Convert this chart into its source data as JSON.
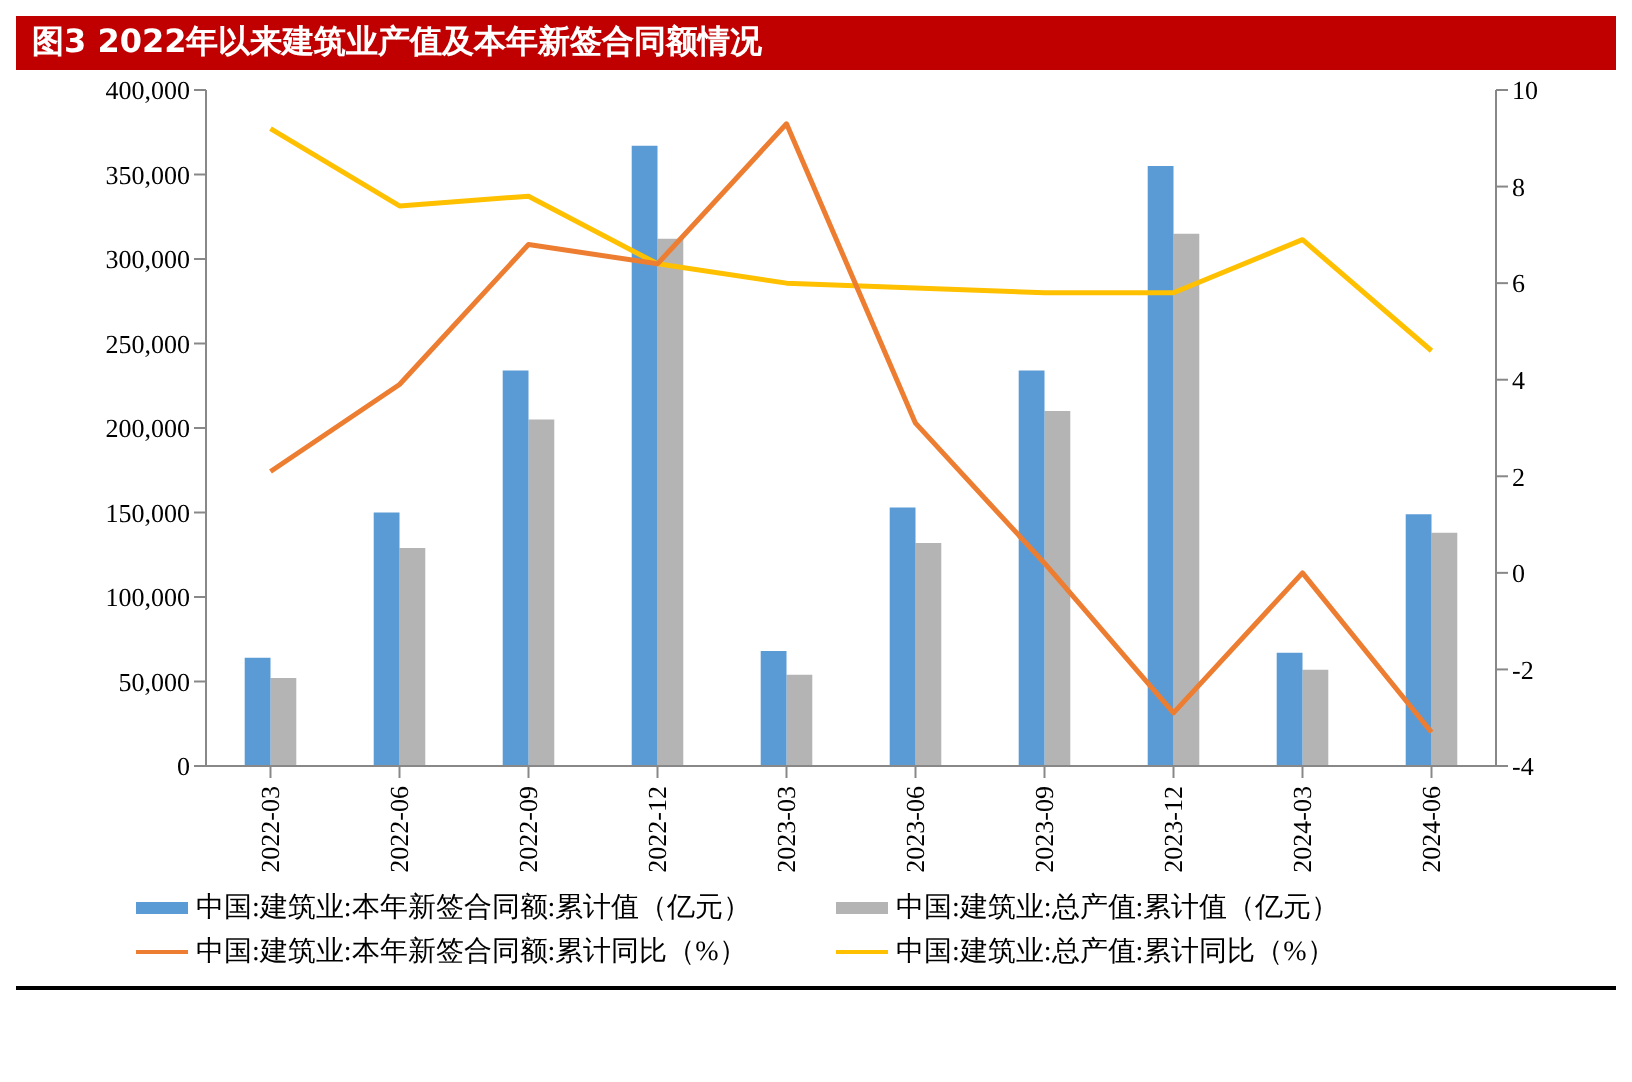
{
  "chart_data": {
    "type": "bar",
    "title": "图3   2022年以来建筑业产值及本年新签合同额情况",
    "categories": [
      "2022-03",
      "2022-06",
      "2022-09",
      "2022-12",
      "2023-03",
      "2023-06",
      "2023-09",
      "2023-12",
      "2024-03",
      "2024-06"
    ],
    "series": [
      {
        "name": "中国:建筑业:本年新签合同额:累计值（亿元）",
        "color": "#5b9bd5",
        "values": [
          64000,
          150000,
          234000,
          367000,
          68000,
          153000,
          234000,
          355000,
          67000,
          149000
        ]
      },
      {
        "name": "中国:建筑业:总产值:累计值（亿元）",
        "color": "#b4b4b4",
        "values": [
          52000,
          129000,
          205000,
          312000,
          54000,
          132000,
          210000,
          315000,
          57000,
          138000
        ]
      },
      {
        "name": "中国:建筑业:本年新签合同额:累计同比（%）",
        "type": "line",
        "axis": "y2",
        "color": "#ed7d31",
        "values": [
          2.1,
          3.9,
          6.8,
          6.4,
          9.3,
          3.1,
          0.2,
          -2.9,
          0.0,
          -3.3
        ]
      },
      {
        "name": "中国:建筑业:总产值:累计同比（%）",
        "type": "line",
        "axis": "y2",
        "color": "#ffc000",
        "values": [
          9.2,
          7.6,
          7.8,
          6.4,
          6.0,
          5.9,
          5.8,
          5.8,
          6.9,
          4.6
        ]
      }
    ],
    "ylim": [
      0,
      400000
    ],
    "yticks": [
      0,
      {
        "value": 50000,
        "label": "50,000"
      },
      {
        "value": 100000,
        "label": "100,000"
      },
      {
        "value": 150000,
        "label": "150,000"
      },
      {
        "value": 200000,
        "label": "200,000"
      },
      {
        "value": 250000,
        "label": "250,000"
      },
      {
        "value": 300000,
        "label": "300,000"
      },
      {
        "value": 350000,
        "label": "350,000"
      },
      {
        "value": 400000,
        "label": "400,000"
      }
    ],
    "y2lim": [
      -4,
      10
    ],
    "y2ticks": [
      -4,
      -2,
      0,
      2,
      4,
      6,
      8,
      10
    ],
    "grid": false,
    "legend": "bottom",
    "marker": "none",
    "line_style": "solid"
  }
}
